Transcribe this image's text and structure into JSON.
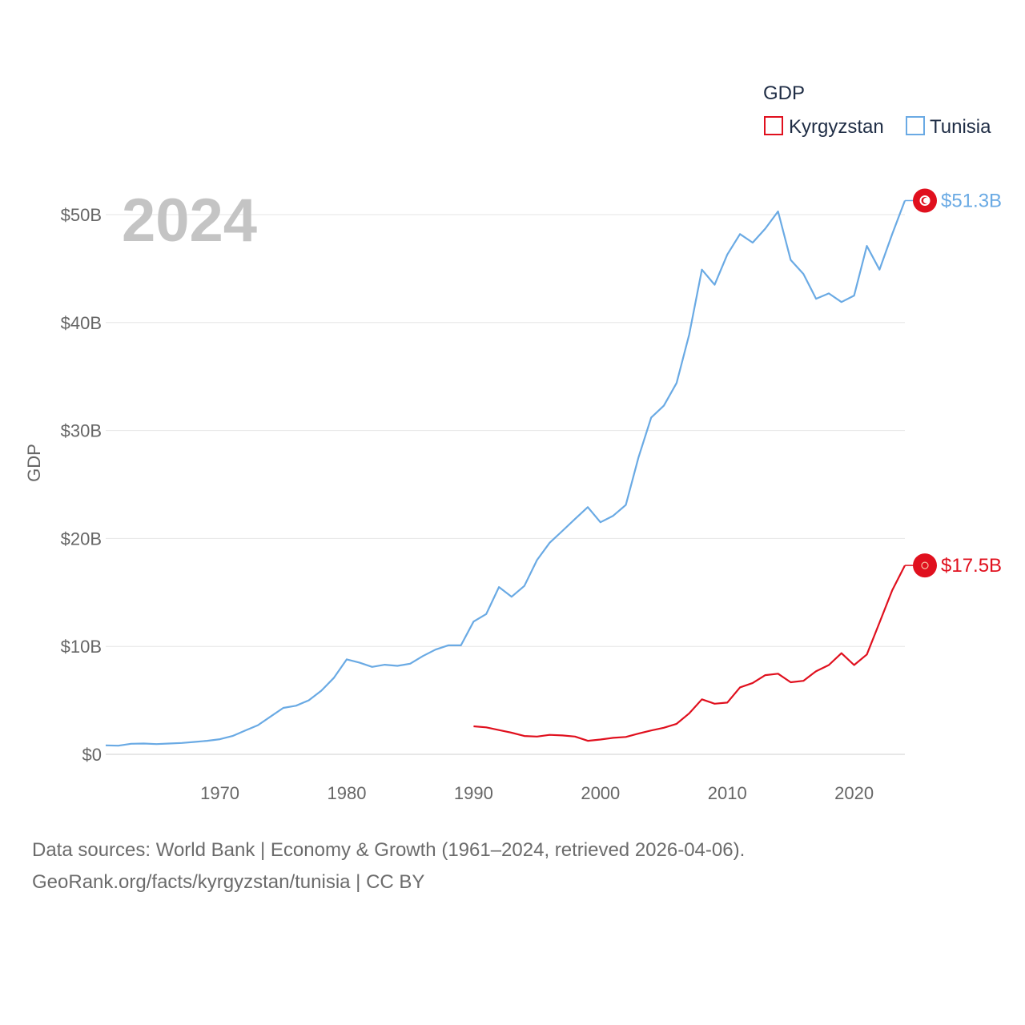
{
  "chart_data": {
    "type": "line",
    "year_label": "2024",
    "ylabel": "GDP",
    "ylim": [
      0,
      52000000000
    ],
    "xlim": [
      1961,
      2024
    ],
    "yticks": [
      {
        "value": 0,
        "label": "$0"
      },
      {
        "value": 10000000000,
        "label": "$10B"
      },
      {
        "value": 20000000000,
        "label": "$20B"
      },
      {
        "value": 30000000000,
        "label": "$30B"
      },
      {
        "value": 40000000000,
        "label": "$40B"
      },
      {
        "value": 50000000000,
        "label": "$50B"
      }
    ],
    "xticks": [
      {
        "value": 1970,
        "label": "1970"
      },
      {
        "value": 1980,
        "label": "1980"
      },
      {
        "value": 1990,
        "label": "1990"
      },
      {
        "value": 2000,
        "label": "2000"
      },
      {
        "value": 2010,
        "label": "2010"
      },
      {
        "value": 2020,
        "label": "2020"
      }
    ],
    "legend": {
      "title": "GDP",
      "position": "top-right",
      "entries": [
        {
          "name": "Kyrgyzstan",
          "color": "#e0101e"
        },
        {
          "name": "Tunisia",
          "color": "#6aaae4"
        }
      ]
    },
    "series": [
      {
        "name": "Tunisia",
        "color": "#6aaae4",
        "end_label": "$51.3B",
        "years": [
          1961,
          1962,
          1963,
          1964,
          1965,
          1966,
          1967,
          1968,
          1969,
          1970,
          1971,
          1972,
          1973,
          1974,
          1975,
          1976,
          1977,
          1978,
          1979,
          1980,
          1981,
          1982,
          1983,
          1984,
          1985,
          1986,
          1987,
          1988,
          1989,
          1990,
          1991,
          1992,
          1993,
          1994,
          1995,
          1996,
          1997,
          1998,
          1999,
          2000,
          2001,
          2002,
          2003,
          2004,
          2005,
          2006,
          2007,
          2008,
          2009,
          2010,
          2011,
          2012,
          2013,
          2014,
          2015,
          2016,
          2017,
          2018,
          2019,
          2020,
          2021,
          2022,
          2023,
          2024
        ],
        "values": [
          0.83,
          0.8,
          0.98,
          1.0,
          0.95,
          1.0,
          1.05,
          1.15,
          1.25,
          1.4,
          1.7,
          2.2,
          2.7,
          3.5,
          4.3,
          4.5,
          5.0,
          5.9,
          7.1,
          8.8,
          8.5,
          8.1,
          8.3,
          8.2,
          8.4,
          9.1,
          9.7,
          10.1,
          10.1,
          12.3,
          13.0,
          15.5,
          14.6,
          15.6,
          18.0,
          19.6,
          20.7,
          21.8,
          22.9,
          21.5,
          22.1,
          23.1,
          27.5,
          31.2,
          32.3,
          34.4,
          38.9,
          44.9,
          43.5,
          46.3,
          48.2,
          47.4,
          48.7,
          50.3,
          45.8,
          44.5,
          42.2,
          42.7,
          41.9,
          42.5,
          47.1,
          44.9,
          48.2,
          51.3
        ]
      },
      {
        "name": "Kyrgyzstan",
        "color": "#e0101e",
        "end_label": "$17.5B",
        "years": [
          1990,
          1991,
          1992,
          1993,
          1994,
          1995,
          1996,
          1997,
          1998,
          1999,
          2000,
          2001,
          2002,
          2003,
          2004,
          2005,
          2006,
          2007,
          2008,
          2009,
          2010,
          2011,
          2012,
          2013,
          2014,
          2015,
          2016,
          2017,
          2018,
          2019,
          2020,
          2021,
          2022,
          2023,
          2024
        ],
        "values": [
          2.6,
          2.5,
          2.25,
          2.0,
          1.7,
          1.65,
          1.8,
          1.75,
          1.65,
          1.25,
          1.37,
          1.53,
          1.61,
          1.92,
          2.21,
          2.46,
          2.83,
          3.8,
          5.1,
          4.69,
          4.79,
          6.2,
          6.61,
          7.34,
          7.47,
          6.68,
          6.81,
          7.7,
          8.27,
          9.37,
          8.27,
          9.25,
          12.2,
          15.2,
          17.5
        ]
      }
    ]
  },
  "footer": {
    "line1": "Data sources: World Bank | Economy & Growth (1961–2024, retrieved 2026-04-06).",
    "line2": "GeoRank.org/facts/kyrgyzstan/tunisia | CC BY"
  }
}
